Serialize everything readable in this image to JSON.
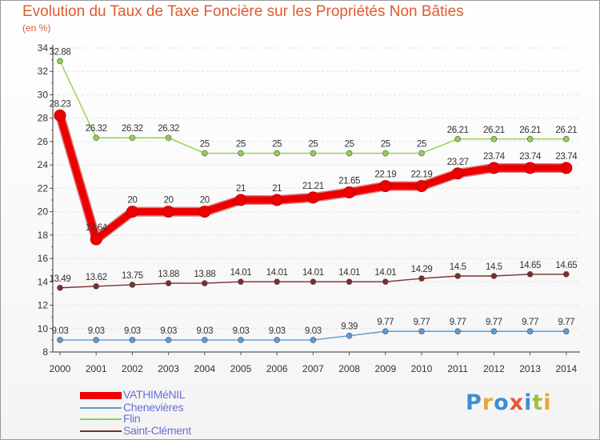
{
  "header": {
    "title": "Evolution du Taux de Taxe Foncière sur les Propriétés Non Bâties",
    "unit": "(en %)"
  },
  "logo": {
    "text": "Proxiti",
    "letters": [
      "P",
      "r",
      "o",
      "x",
      "i",
      "t",
      "i"
    ],
    "colors": [
      "#3b8fd6",
      "#e8a53a",
      "#3b8fd6",
      "#e8553a",
      "#3b8fd6",
      "#9cc23a",
      "#e8a53a"
    ]
  },
  "chart_data": {
    "type": "line",
    "title": "Evolution du Taux de Taxe Foncière sur les Propriétés Non Bâties",
    "ylabel": "(en %)",
    "xlabel": "",
    "ylim": [
      8,
      34
    ],
    "yticks": [
      "8",
      "10",
      "12",
      "14",
      "16",
      "18",
      "20",
      "22",
      "24",
      "26",
      "28",
      "30",
      "32",
      "34"
    ],
    "x": [
      "2000",
      "2001",
      "2002",
      "2003",
      "2004",
      "2005",
      "2006",
      "2007",
      "2008",
      "2009",
      "2010",
      "2011",
      "2012",
      "2013",
      "2014"
    ],
    "series": [
      {
        "name": "VATHIMéNIL",
        "color": "#ee0000",
        "values": [
          28.23,
          17.64,
          20,
          20,
          20,
          21,
          21,
          21.21,
          21.65,
          22.19,
          22.19,
          23.27,
          23.74,
          23.74,
          23.74
        ],
        "labels": [
          "28.23",
          "17.64",
          "20",
          "20",
          "20",
          "21",
          "21",
          "21.21",
          "21.65",
          "22.19",
          "22.19",
          "23.27",
          "23.74",
          "23.74",
          "23.74"
        ]
      },
      {
        "name": "Chenevières",
        "color": "#5b9bd5",
        "values": [
          9.03,
          9.03,
          9.03,
          9.03,
          9.03,
          9.03,
          9.03,
          9.03,
          9.39,
          9.77,
          9.77,
          9.77,
          9.77,
          9.77,
          9.77
        ],
        "labels": [
          "9.03",
          "9.03",
          "9.03",
          "9.03",
          "9.03",
          "9.03",
          "9.03",
          "9.03",
          "9.39",
          "9.77",
          "9.77",
          "9.77",
          "9.77",
          "9.77",
          "9.77"
        ]
      },
      {
        "name": "Flin",
        "color": "#8fd14f",
        "values": [
          32.88,
          26.32,
          26.32,
          26.32,
          25,
          25,
          25,
          25,
          25,
          25,
          25,
          26.21,
          26.21,
          26.21,
          26.21
        ],
        "labels": [
          "32.88",
          "26.32",
          "26.32",
          "26.32",
          "25",
          "25",
          "25",
          "25",
          "25",
          "25",
          "25",
          "26.21",
          "26.21",
          "26.21",
          "26.21"
        ]
      },
      {
        "name": "Saint-Clément",
        "color": "#7a2e2e",
        "values": [
          13.49,
          13.62,
          13.75,
          13.88,
          13.88,
          14.01,
          14.01,
          14.01,
          14.01,
          14.01,
          14.29,
          14.5,
          14.5,
          14.65,
          14.65
        ],
        "labels": [
          "13.49",
          "13.62",
          "13.75",
          "13.88",
          "13.88",
          "14.01",
          "14.01",
          "14.01",
          "14.01",
          "14.01",
          "14.29",
          "14.5",
          "14.5",
          "14.65",
          "14.65"
        ]
      }
    ]
  }
}
